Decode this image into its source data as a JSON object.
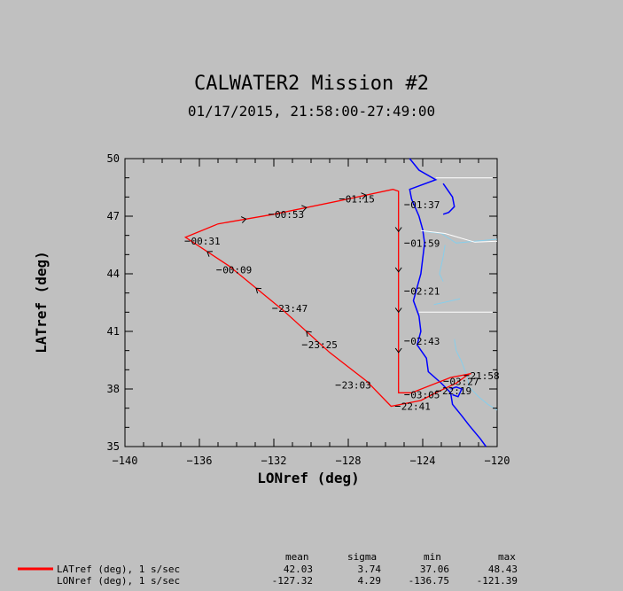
{
  "title": "CALWATER2 Mission #2",
  "subtitle": "01/17/2015, 21:58:00-27:49:00",
  "chart_data": {
    "type": "line",
    "xlabel": "LONref (deg)",
    "ylabel": "LATref (deg)",
    "xlim": [
      -140,
      -120
    ],
    "ylim": [
      35,
      50
    ],
    "xticks": [
      -140,
      -136,
      -132,
      -128,
      -124,
      -120
    ],
    "yticks": [
      35,
      38,
      41,
      44,
      47,
      50
    ],
    "grid": false,
    "series": [
      {
        "name": "LATref (deg), 1 s/sec",
        "color": "#ff0000",
        "points": [
          [
            -121.5,
            38.8
          ],
          [
            -122.2,
            38.3
          ],
          [
            -123.3,
            37.8
          ],
          [
            -124.1,
            37.4
          ],
          [
            -125.7,
            37.1
          ],
          [
            -127.0,
            38.4
          ],
          [
            -129.0,
            39.9
          ],
          [
            -131.5,
            42.1
          ],
          [
            -134.4,
            44.4
          ],
          [
            -136.75,
            45.9
          ],
          [
            -135.0,
            46.6
          ],
          [
            -132.0,
            47.1
          ],
          [
            -128.5,
            47.8
          ],
          [
            -125.6,
            48.4
          ],
          [
            -125.3,
            48.3
          ],
          [
            -125.3,
            37.8
          ],
          [
            -124.6,
            37.8
          ],
          [
            -122.5,
            38.6
          ],
          [
            -121.4,
            38.8
          ]
        ],
        "time_labels": [
          {
            "text": "00:31",
            "lon": -136.5,
            "lat": 45.7
          },
          {
            "text": "00:53",
            "lon": -132.0,
            "lat": 47.1
          },
          {
            "text": "01:15",
            "lon": -128.2,
            "lat": 47.9
          },
          {
            "text": "01:37",
            "lon": -124.7,
            "lat": 47.6
          },
          {
            "text": "01:59",
            "lon": -124.7,
            "lat": 45.6
          },
          {
            "text": "00:09",
            "lon": -134.8,
            "lat": 44.2
          },
          {
            "text": "02:21",
            "lon": -124.7,
            "lat": 43.1
          },
          {
            "text": "23:47",
            "lon": -131.8,
            "lat": 42.2
          },
          {
            "text": "02:43",
            "lon": -124.7,
            "lat": 40.5
          },
          {
            "text": "23:25",
            "lon": -130.2,
            "lat": 40.3
          },
          {
            "text": "23:03",
            "lon": -128.4,
            "lat": 38.2
          },
          {
            "text": "03:05",
            "lon": -124.7,
            "lat": 37.7
          },
          {
            "text": "22:41",
            "lon": -125.2,
            "lat": 37.1
          },
          {
            "text": "22:19",
            "lon": -123.0,
            "lat": 37.9
          },
          {
            "text": "21:58",
            "lon": -121.5,
            "lat": 38.7
          },
          {
            "text": "03:27",
            "lon": -122.6,
            "lat": 38.4
          }
        ]
      }
    ],
    "stats": {
      "columns": [
        "mean",
        "sigma",
        "min",
        "max"
      ],
      "rows": [
        {
          "label": "LATref (deg), 1 s/sec",
          "mean": "42.03",
          "sigma": "3.74",
          "min": "37.06",
          "max": "48.43"
        },
        {
          "label": "LONref (deg), 1 s/sec",
          "mean": "-127.32",
          "sigma": "4.29",
          "min": "-136.75",
          "max": "-121.39"
        }
      ]
    },
    "colors": {
      "track": "#ff0000",
      "coast": "#0000ff",
      "rivers": "#87ceeb",
      "borders": "#ffffff",
      "background": "#c0c0c0"
    }
  }
}
